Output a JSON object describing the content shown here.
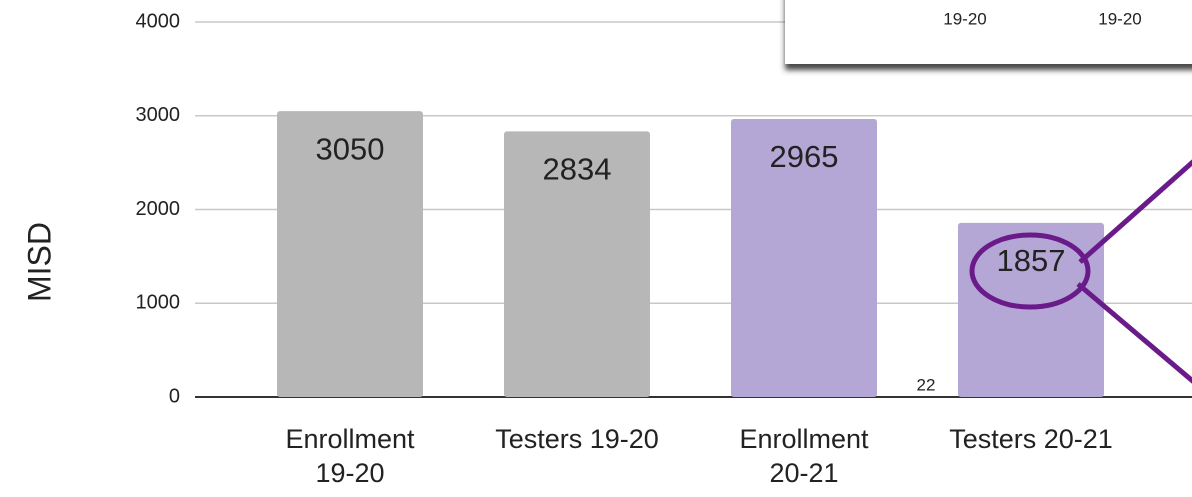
{
  "chart_data": {
    "type": "bar",
    "y_label": "MISD",
    "categories": [
      "Enrollment 19-20",
      "Testers 19-20",
      "Enrollment 20-21",
      "Testers 20-21"
    ],
    "values": [
      3050,
      2834,
      2965,
      1857
    ],
    "colors": [
      "#b7b7b7",
      "#b7b7b7",
      "#b4a7d6",
      "#b4a7d6"
    ],
    "ylim": [
      0,
      4000
    ],
    "yticks": [
      0,
      1000,
      2000,
      3000,
      4000
    ],
    "grid": true
  },
  "overlay": {
    "labels": [
      "19-20",
      "19-20"
    ],
    "page_number": "22"
  }
}
